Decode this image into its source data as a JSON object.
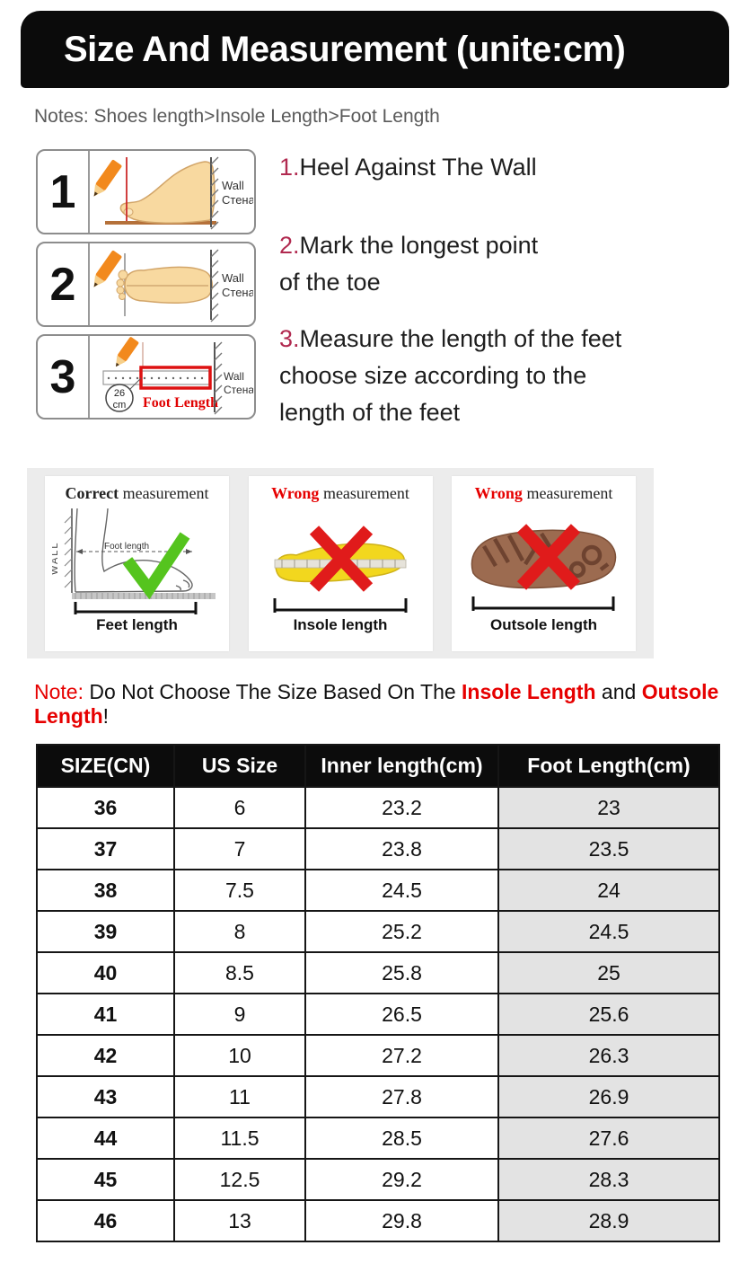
{
  "title": "Size And Measurement (unite:cm)",
  "notes": "Notes: Shoes length>Insole Length>Foot Length",
  "steps": [
    {
      "num": "1",
      "wall_en": "Wall",
      "wall_ru": "Стена"
    },
    {
      "num": "2",
      "wall_en": "Wall",
      "wall_ru": "Стена"
    },
    {
      "num": "3",
      "wall_en": "Wall",
      "wall_ru": "Стена",
      "ruler_value": "26",
      "ruler_unit": "cm",
      "foot_length_label": "Foot Length"
    }
  ],
  "instructions": [
    {
      "num": "1.",
      "text": "Heel Against The Wall"
    },
    {
      "num": "2.",
      "text": "Mark the longest point\nof the toe"
    },
    {
      "num": "3.",
      "text": "Measure the length of the feet\nchoose size according to the\nlength of the feet"
    }
  ],
  "panels": [
    {
      "title_em": "Correct",
      "title_rest": " measurement",
      "wall_label": "WALL",
      "arrow_label": "Foot length",
      "length_label": "Feet length",
      "verdict": "correct"
    },
    {
      "title_em": "Wrong",
      "title_rest": " measurement",
      "length_label": "Insole length",
      "verdict": "wrong"
    },
    {
      "title_em": "Wrong",
      "title_rest": " measurement",
      "length_label": "Outsole length",
      "verdict": "wrong"
    }
  ],
  "note": {
    "label": "Note:",
    "body": " Do Not Choose The Size Based On The ",
    "em1": "Insole Length",
    "mid": " and ",
    "em2": "Outsole Length",
    "end": "!"
  },
  "table": {
    "headers": [
      "SIZE(CN)",
      "US Size",
      "Inner length(cm)",
      "Foot Length(cm)"
    ],
    "rows": [
      [
        "36",
        "6",
        "23.2",
        "23"
      ],
      [
        "37",
        "7",
        "23.8",
        "23.5"
      ],
      [
        "38",
        "7.5",
        "24.5",
        "24"
      ],
      [
        "39",
        "8",
        "25.2",
        "24.5"
      ],
      [
        "40",
        "8.5",
        "25.8",
        "25"
      ],
      [
        "41",
        "9",
        "26.5",
        "25.6"
      ],
      [
        "42",
        "10",
        "27.2",
        "26.3"
      ],
      [
        "43",
        "11",
        "27.8",
        "26.9"
      ],
      [
        "44",
        "11.5",
        "28.5",
        "27.6"
      ],
      [
        "45",
        "12.5",
        "29.2",
        "28.3"
      ],
      [
        "46",
        "13",
        "29.8",
        "28.9"
      ]
    ]
  },
  "colors": {
    "title_bar_bg": "#0b0b0b",
    "accent_red": "#e60000",
    "instruction_number": "#b12a50",
    "table_header_bg": "#0c0c0c",
    "table_gray_cell": "#e3e3e3",
    "panel_section_bg": "#ececec",
    "check_green": "#55c41e",
    "cross_red": "#e01b1b",
    "insole_yellow": "#f2d71e",
    "outsole_brown": "#9c6b50",
    "pencil_orange": "#f2891d",
    "skin": "#f8d9a0"
  }
}
